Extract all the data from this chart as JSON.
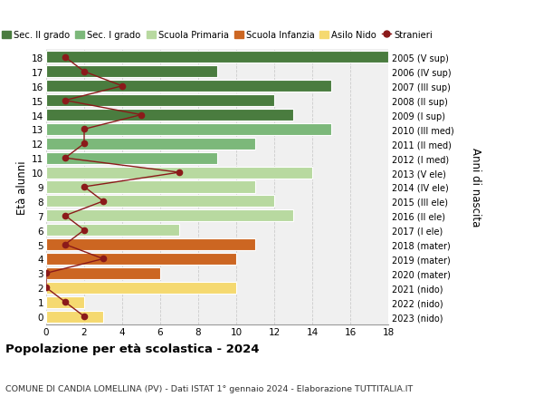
{
  "ages": [
    18,
    17,
    16,
    15,
    14,
    13,
    12,
    11,
    10,
    9,
    8,
    7,
    6,
    5,
    4,
    3,
    2,
    1,
    0
  ],
  "years_labels": [
    "2005 (V sup)",
    "2006 (IV sup)",
    "2007 (III sup)",
    "2008 (II sup)",
    "2009 (I sup)",
    "2010 (III med)",
    "2011 (II med)",
    "2012 (I med)",
    "2013 (V ele)",
    "2014 (IV ele)",
    "2015 (III ele)",
    "2016 (II ele)",
    "2017 (I ele)",
    "2018 (mater)",
    "2019 (mater)",
    "2020 (mater)",
    "2021 (nido)",
    "2022 (nido)",
    "2023 (nido)"
  ],
  "bar_values": [
    18,
    9,
    15,
    12,
    13,
    15,
    11,
    9,
    14,
    11,
    12,
    13,
    7,
    11,
    10,
    6,
    10,
    2,
    3
  ],
  "bar_colors": [
    "#4a7c3f",
    "#4a7c3f",
    "#4a7c3f",
    "#4a7c3f",
    "#4a7c3f",
    "#7cb87a",
    "#7cb87a",
    "#7cb87a",
    "#b8d9a0",
    "#b8d9a0",
    "#b8d9a0",
    "#b8d9a0",
    "#b8d9a0",
    "#cc6622",
    "#cc6622",
    "#cc6622",
    "#f5d970",
    "#f5d970",
    "#f5d970"
  ],
  "stranieri_values": [
    1,
    2,
    4,
    1,
    5,
    2,
    2,
    1,
    7,
    2,
    3,
    1,
    2,
    1,
    3,
    0,
    0,
    1,
    2
  ],
  "xlim": [
    0,
    18
  ],
  "ylabel_left": "Età alunni",
  "ylabel_right": "Anni di nascita",
  "title": "Popolazione per età scolastica - 2024",
  "subtitle": "COMUNE DI CANDIA LOMELLINA (PV) - Dati ISTAT 1° gennaio 2024 - Elaborazione TUTTITALIA.IT",
  "legend_labels": [
    "Sec. II grado",
    "Sec. I grado",
    "Scuola Primaria",
    "Scuola Infanzia",
    "Asilo Nido",
    "Stranieri"
  ],
  "legend_colors": [
    "#4a7c3f",
    "#7cb87a",
    "#b8d9a0",
    "#cc6622",
    "#f5d970",
    "#8b1a1a"
  ],
  "stranieri_color": "#8b1a1a",
  "grid_color": "#cccccc",
  "bg_color": "#f0f0f0"
}
